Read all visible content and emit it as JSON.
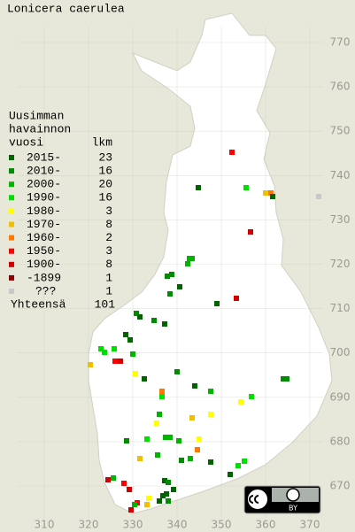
{
  "title": "Lonicera caerulea",
  "legend": {
    "title": [
      "Uusimman",
      "havainnon",
      "vuosi"
    ],
    "count_header": "lkm",
    "items": [
      {
        "label": "2015-",
        "count": 23,
        "color": "#006400"
      },
      {
        "label": "2010-",
        "count": 16,
        "color": "#008c00"
      },
      {
        "label": "2000-",
        "count": 20,
        "color": "#00b400"
      },
      {
        "label": "1990-",
        "count": 16,
        "color": "#00e000"
      },
      {
        "label": "1980-",
        "count": 3,
        "color": "#ffff00"
      },
      {
        "label": "1970-",
        "count": 8,
        "color": "#f0c000"
      },
      {
        "label": "1960-",
        "count": 2,
        "color": "#ff7800"
      },
      {
        "label": "1950-",
        "count": 3,
        "color": "#ff0000"
      },
      {
        "label": "1900-",
        "count": 8,
        "color": "#d00000"
      },
      {
        "label": "-1899",
        "count": 1,
        "color": "#8c0000"
      },
      {
        "label": "???",
        "count": 1,
        "color": "#c8c8c8"
      }
    ],
    "total_label": "Yhteensä",
    "total": 101
  },
  "x_ticks": [
    310,
    320,
    330,
    340,
    350,
    360,
    370
  ],
  "y_ticks": [
    770,
    760,
    750,
    740,
    730,
    720,
    710,
    700,
    690,
    680,
    670
  ],
  "license_badge": "BY"
}
